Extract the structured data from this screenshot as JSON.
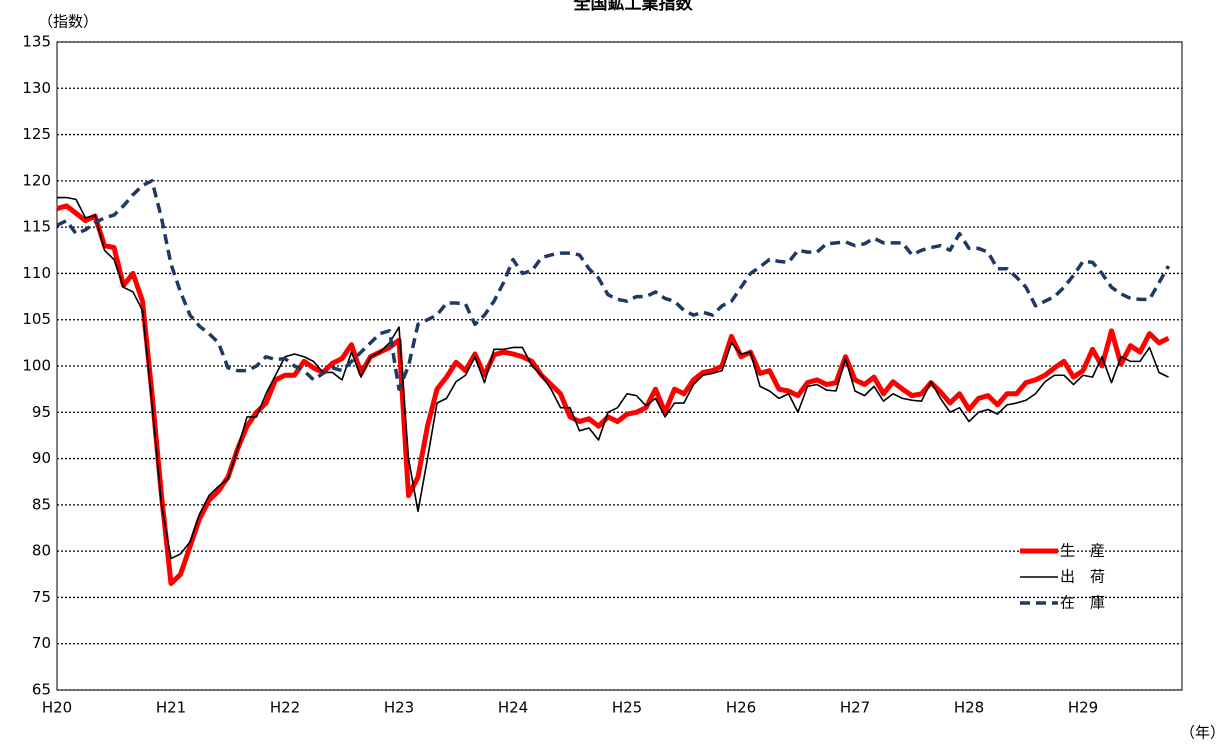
{
  "chart_data": {
    "type": "line",
    "title": "全国鉱工業指数",
    "y_label": "（指数）",
    "x_label": "（年）",
    "categories": [
      "H20",
      null,
      null,
      null,
      null,
      null,
      null,
      null,
      null,
      null,
      null,
      null,
      "H21",
      null,
      null,
      null,
      null,
      null,
      null,
      null,
      null,
      null,
      null,
      null,
      "H22",
      null,
      null,
      null,
      null,
      null,
      null,
      null,
      null,
      null,
      null,
      null,
      "H23",
      null,
      null,
      null,
      null,
      null,
      null,
      null,
      null,
      null,
      null,
      null,
      "H24",
      null,
      null,
      null,
      null,
      null,
      null,
      null,
      null,
      null,
      null,
      null,
      "H25",
      null,
      null,
      null,
      null,
      null,
      null,
      null,
      null,
      null,
      null,
      null,
      "H26",
      null,
      null,
      null,
      null,
      null,
      null,
      null,
      null,
      null,
      null,
      null,
      "H27",
      null,
      null,
      null,
      null,
      null,
      null,
      null,
      null,
      null,
      null,
      null,
      "H28",
      null,
      null,
      null,
      null,
      null,
      null,
      null,
      null,
      null,
      null,
      null,
      "H29",
      null,
      null,
      null,
      null,
      null,
      null,
      null,
      null,
      null
    ],
    "series": [
      {
        "name": "生　産",
        "color": "#ff0000",
        "width": 5,
        "dash": false,
        "values": [
          117,
          117.3,
          116.5,
          115.7,
          116.2,
          113,
          112.8,
          108.7,
          110,
          107,
          97,
          86,
          76.5,
          77.5,
          80.5,
          83.5,
          85.5,
          86.5,
          88,
          91,
          93.5,
          95,
          96,
          98.5,
          99,
          99,
          100.5,
          99.8,
          99.3,
          100.3,
          100.8,
          102.3,
          99.2,
          101,
          101.5,
          102,
          102.8,
          86,
          88,
          93.5,
          97.5,
          98.8,
          100.4,
          99.5,
          101.3,
          99,
          101.2,
          101.5,
          101.3,
          101,
          100.5,
          99,
          98,
          97,
          94.5,
          94,
          94.3,
          93.5,
          94.5,
          94,
          94.8,
          95,
          95.5,
          97.5,
          95,
          97.5,
          97,
          98.5,
          99.3,
          99.5,
          100,
          103.2,
          101,
          101.5,
          99.2,
          99.5,
          97.5,
          97.3,
          96.8,
          98.2,
          98.5,
          98,
          98.2,
          101,
          98.5,
          98,
          98.8,
          97,
          98.3,
          97.5,
          96.8,
          97,
          98.2,
          97.2,
          96,
          97,
          95.3,
          96.5,
          96.8,
          95.8,
          97,
          97,
          98.2,
          98.5,
          99,
          99.8,
          100.5,
          98.8,
          99.5,
          101.8,
          100,
          103.8,
          100.2,
          102.2,
          101.5,
          103.5,
          102.5,
          103
        ]
      },
      {
        "name": "出　荷",
        "color": "#000000",
        "width": 1.6,
        "dash": false,
        "values": [
          118.2,
          118.2,
          118,
          116,
          116.3,
          112.5,
          111.5,
          108.5,
          108,
          106,
          96,
          85,
          79.2,
          79.7,
          81,
          84,
          86,
          87,
          87.8,
          91,
          94.5,
          94.5,
          97,
          99,
          101,
          101.3,
          101,
          100.5,
          99.3,
          99.3,
          98.5,
          101.5,
          98.8,
          101,
          101.5,
          102.5,
          104.2,
          90,
          84.3,
          90,
          96,
          96.5,
          98.3,
          99,
          101,
          98.2,
          101.8,
          101.8,
          102,
          102,
          100,
          99,
          97.5,
          95.5,
          95.5,
          93,
          93.3,
          92,
          95,
          95.5,
          97,
          96.8,
          95.7,
          96.5,
          94.5,
          96,
          96,
          98,
          99,
          99.2,
          99.5,
          102.5,
          101.3,
          101.5,
          97.8,
          97.3,
          96.5,
          97,
          95,
          97.8,
          98,
          97.4,
          97.3,
          100.8,
          97.3,
          96.8,
          97.8,
          96.2,
          97,
          96.5,
          96.3,
          96.2,
          98.3,
          96.5,
          95,
          95.5,
          94,
          95,
          95.3,
          94.8,
          95.8,
          96,
          96.3,
          97,
          98.3,
          99,
          99,
          98,
          99,
          98.8,
          101,
          98.2,
          101,
          100.5,
          100.5,
          102,
          99.3,
          98.8
        ]
      },
      {
        "name": "在　庫",
        "color": "#1f3864",
        "width": 3.5,
        "dash": true,
        "values": [
          115.2,
          115.7,
          114.3,
          114.7,
          115.5,
          116,
          116.3,
          117.3,
          118.5,
          119.5,
          120,
          116,
          111,
          108,
          105.5,
          104.3,
          103.5,
          102.5,
          99.8,
          99.5,
          99.5,
          100,
          101,
          100.7,
          100.8,
          100,
          99.5,
          98.5,
          99.2,
          99.8,
          99.5,
          100.5,
          101.5,
          102.5,
          103.5,
          103.8,
          97.5,
          100,
          104.5,
          105,
          105.5,
          106.8,
          106.8,
          106.7,
          104.5,
          105.5,
          107,
          109,
          111.5,
          110,
          110.3,
          111.7,
          112,
          112.2,
          112.2,
          112,
          110.5,
          109.5,
          107.7,
          107.2,
          107,
          107.5,
          107.5,
          108,
          107.3,
          107,
          106,
          105.5,
          105.8,
          105.5,
          106.5,
          107,
          108.5,
          110,
          110.7,
          111.5,
          111.3,
          111.2,
          112.5,
          112.3,
          112.3,
          113.2,
          113.3,
          113.4,
          113,
          113.2,
          113.8,
          113.3,
          113.3,
          113.3,
          112,
          112.5,
          112.8,
          113,
          112.5,
          114.3,
          112.7,
          112.7,
          112.3,
          110.5,
          110.5,
          109.6,
          108.5,
          106.5,
          107,
          107.5,
          108.5,
          109.8,
          111.3,
          111.2,
          110,
          108.5,
          107.8,
          107.3,
          107.2,
          107.2,
          109,
          110.8
        ]
      }
    ],
    "ylim": [
      65,
      135
    ],
    "yticks": [
      65,
      70,
      75,
      80,
      85,
      90,
      95,
      100,
      105,
      110,
      115,
      120,
      125,
      130,
      135
    ],
    "grid": true,
    "legend": "lower right"
  }
}
